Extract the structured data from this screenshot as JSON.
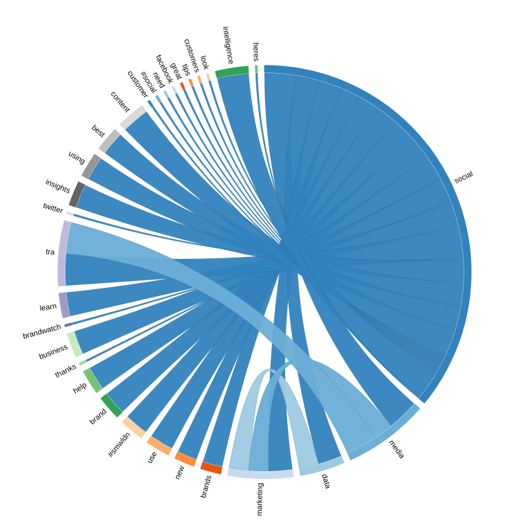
{
  "chart_data": {
    "type": "chord",
    "groups": [
      {
        "name": "social",
        "color": "#3182bd"
      },
      {
        "name": "media",
        "color": "#6baed6"
      },
      {
        "name": "data",
        "color": "#9ecae1"
      },
      {
        "name": "marketing",
        "color": "#c6dbef"
      },
      {
        "name": "brands",
        "color": "#e6550d"
      },
      {
        "name": "new",
        "color": "#fd8d3c"
      },
      {
        "name": "use",
        "color": "#fdae6b"
      },
      {
        "name": "#smwldn",
        "color": "#fdd0a2"
      },
      {
        "name": "brand",
        "color": "#31a354"
      },
      {
        "name": "help",
        "color": "#74c476"
      },
      {
        "name": "thanks",
        "color": "#a1d99b"
      },
      {
        "name": "business",
        "color": "#c7e9c0"
      },
      {
        "name": "brandwatch",
        "color": "#756bb1"
      },
      {
        "name": "learn",
        "color": "#9e9ac8"
      },
      {
        "name": "tra",
        "color": "#bcbddc"
      },
      {
        "name": "twitter",
        "color": "#dadaeb"
      },
      {
        "name": "insights",
        "color": "#636363"
      },
      {
        "name": "using",
        "color": "#969696"
      },
      {
        "name": "best",
        "color": "#bdbdbd"
      },
      {
        "name": "content",
        "color": "#d9d9d9"
      },
      {
        "name": "customer",
        "color": "#3182bd"
      },
      {
        "name": "#social",
        "color": "#6baed6"
      },
      {
        "name": "need",
        "color": "#9ecae1"
      },
      {
        "name": "facebook",
        "color": "#c6dbef"
      },
      {
        "name": "great",
        "color": "#e6550d"
      },
      {
        "name": "tips",
        "color": "#fd8d3c"
      },
      {
        "name": "customers",
        "color": "#fdae6b"
      },
      {
        "name": "look",
        "color": "#fdd0a2"
      },
      {
        "name": "intelligence",
        "color": "#31a354"
      },
      {
        "name": "heres",
        "color": "#74c476"
      }
    ],
    "chords": [
      {
        "source": 0,
        "target": 1,
        "value": 8
      },
      {
        "source": 0,
        "target": 2,
        "value": 6
      },
      {
        "source": 0,
        "target": 3,
        "value": 6
      },
      {
        "source": 0,
        "target": 4,
        "value": 5
      },
      {
        "source": 0,
        "target": 5,
        "value": 5
      },
      {
        "source": 0,
        "target": 6,
        "value": 6
      },
      {
        "source": 0,
        "target": 7,
        "value": 6
      },
      {
        "source": 0,
        "target": 8,
        "value": 6
      },
      {
        "source": 0,
        "target": 9,
        "value": 6
      },
      {
        "source": 0,
        "target": 10,
        "value": 0.5
      },
      {
        "source": 0,
        "target": 11,
        "value": 6
      },
      {
        "source": 0,
        "target": 12,
        "value": 0.5
      },
      {
        "source": 0,
        "target": 13,
        "value": 6
      },
      {
        "source": 0,
        "target": 14,
        "value": 8
      },
      {
        "source": 0,
        "target": 15,
        "value": 0.5
      },
      {
        "source": 0,
        "target": 16,
        "value": 6
      },
      {
        "source": 0,
        "target": 17,
        "value": 6
      },
      {
        "source": 0,
        "target": 18,
        "value": 6
      },
      {
        "source": 0,
        "target": 19,
        "value": 7
      },
      {
        "source": 0,
        "target": 20,
        "value": 0.5
      },
      {
        "source": 0,
        "target": 21,
        "value": 0.5
      },
      {
        "source": 0,
        "target": 22,
        "value": 0.5
      },
      {
        "source": 0,
        "target": 23,
        "value": 0.5
      },
      {
        "source": 0,
        "target": 24,
        "value": 0.5
      },
      {
        "source": 0,
        "target": 25,
        "value": 0.5
      },
      {
        "source": 0,
        "target": 26,
        "value": 0.5
      },
      {
        "source": 0,
        "target": 27,
        "value": 0.5
      },
      {
        "source": 0,
        "target": 28,
        "value": 8
      },
      {
        "source": 0,
        "target": 29,
        "value": 0.5
      },
      {
        "source": 2,
        "target": 3,
        "value": 5
      },
      {
        "source": 1,
        "target": 3,
        "value": 5
      },
      {
        "source": 1,
        "target": 14,
        "value": 8
      }
    ]
  }
}
